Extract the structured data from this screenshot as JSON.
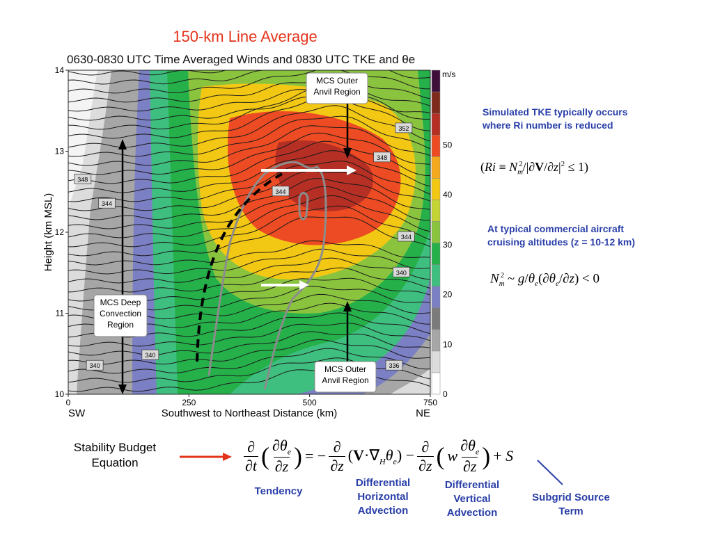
{
  "slide": {
    "title": "150-km Line Average",
    "subtitle": "0630-0830 UTC Time Averaged Winds and 0830 UTC TKE and θe"
  },
  "chart_data": {
    "type": "heatmap",
    "xlabel": "Southwest to Northeast Distance (km)",
    "ylabel": "Height (km MSL)",
    "x_ticks": [
      0,
      250,
      500,
      750
    ],
    "y_ticks": [
      10,
      11,
      12,
      13,
      14
    ],
    "x_end_labels": {
      "left": "SW",
      "right": "NE"
    },
    "xlim": [
      0,
      750
    ],
    "ylim": [
      10,
      14
    ],
    "colorbar": {
      "unit": "m/s",
      "ticks": [
        0,
        10,
        20,
        30,
        40,
        50
      ],
      "colors": [
        "#ffffff",
        "#dcdcdc",
        "#a6a6a6",
        "#7b7b7b",
        "#7b7fc4",
        "#3fbf7f",
        "#25b04a",
        "#8ac43f",
        "#c4d434",
        "#f3c814",
        "#f4a81c",
        "#ec4b23",
        "#b52f24",
        "#7f2a1c",
        "#3f0f3a"
      ]
    },
    "theta_e_labels": [
      "348",
      "344",
      "340",
      "340",
      "336",
      "352",
      "348",
      "344",
      "340",
      "344"
    ],
    "annotations": [
      {
        "text": "MCS Outer Anvil Region",
        "lines": [
          "MCS Outer",
          "Anvil Region"
        ]
      },
      {
        "text": "MCS Outer Anvil Region",
        "lines": [
          "MCS Outer",
          "Anvil Region"
        ]
      },
      {
        "text": "MCS Deep Convection Region",
        "lines": [
          "MCS Deep",
          "Convection",
          "Region"
        ]
      }
    ]
  },
  "right_panel": {
    "note1": [
      "Simulated TKE typically occurs",
      "where Ri number is reduced"
    ],
    "note2": [
      "At typical commercial aircraft",
      "cruising altitudes (z = 10-12 km)"
    ]
  },
  "equation_section": {
    "label_lines": [
      "Stability Budget",
      "Equation"
    ],
    "arrow_color": "#e4331b",
    "term_labels": [
      {
        "lines": [
          "Tendency"
        ]
      },
      {
        "lines": [
          "Differential",
          "Horizontal",
          "Advection"
        ]
      },
      {
        "lines": [
          "Differential",
          "Vertical",
          "Advection"
        ]
      },
      {
        "lines": [
          "Subgrid Source",
          "Term"
        ]
      }
    ]
  }
}
